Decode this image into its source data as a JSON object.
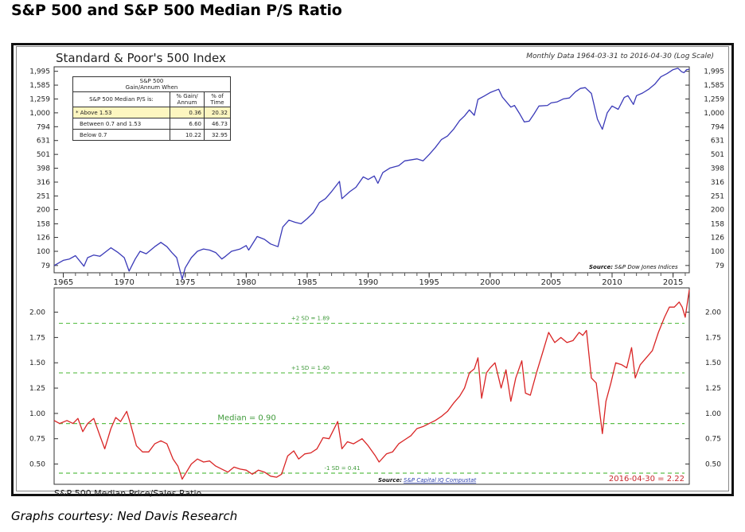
{
  "page": {
    "title": "S&P 500 and S&P 500 Median P/S Ratio",
    "credit": "Graphs courtesy: Ned Davis Research"
  },
  "stats_table": {
    "title_line1": "S&P 500",
    "title_line2": "Gain/Annum When",
    "col_headers": [
      "S&P 500 Median P/S is:",
      "% Gain/ Annum",
      "% of Time"
    ],
    "rows": [
      {
        "label": "* Above 1.53",
        "gain": "0.36",
        "time": "20.32",
        "highlight": true
      },
      {
        "label": "Between 0.7 and 1.53",
        "gain": "6.60",
        "time": "46.73",
        "highlight": false
      },
      {
        "label": "Below 0.7",
        "gain": "10.22",
        "time": "32.95",
        "highlight": false
      }
    ]
  },
  "colors": {
    "spx_line": "#3a3ab8",
    "ps_line": "#d92525",
    "sd_lines": "#5cbf4a",
    "sd_text": "#3f9a3a",
    "latest_text": "#c8282e",
    "source_link": "#2b3fb0"
  },
  "chart_data": [
    {
      "type": "line",
      "title": "Standard & Poor's 500 Index",
      "subtitle": "Monthly Data 1964-03-31 to 2016-04-30 (Log Scale)",
      "source_label": "Source:",
      "source_text": "S&P Dow Jones Indices",
      "xlabel": "",
      "ylabel": "",
      "yscale": "log",
      "ylim": [
        70,
        2150
      ],
      "xlim": [
        1964.25,
        2016.33
      ],
      "y_ticks": [
        1995,
        1585,
        1259,
        1000,
        794,
        631,
        501,
        398,
        316,
        251,
        200,
        158,
        126,
        100,
        79
      ],
      "y_tick_labels": [
        "1,995",
        "1,585",
        "1,259",
        "1,000",
        "794",
        "631",
        "501",
        "398",
        "316",
        "251",
        "200",
        "158",
        "126",
        "100",
        "79"
      ],
      "x_ticks": [
        1965,
        1970,
        1975,
        1980,
        1985,
        1990,
        1995,
        2000,
        2005,
        2010,
        2015
      ],
      "x_tick_labels": [
        "1965",
        "1970",
        "1975",
        "1980",
        "1985",
        "1990",
        "1995",
        "2000",
        "2005",
        "2010",
        "2015"
      ],
      "grid": false,
      "series": [
        {
          "name": "S&P 500",
          "x": [
            1964.25,
            1965.0,
            1965.5,
            1966.0,
            1966.7,
            1967.0,
            1967.5,
            1968.0,
            1968.9,
            1969.5,
            1970.0,
            1970.4,
            1970.9,
            1971.3,
            1971.8,
            1972.5,
            1973.0,
            1973.5,
            1973.9,
            1974.3,
            1974.75,
            1975.0,
            1975.5,
            1976.0,
            1976.5,
            1977.0,
            1977.5,
            1978.0,
            1978.3,
            1978.8,
            1979.5,
            1980.0,
            1980.2,
            1980.9,
            1981.5,
            1982.0,
            1982.6,
            1983.0,
            1983.5,
            1984.0,
            1984.5,
            1985.0,
            1985.5,
            1986.0,
            1986.5,
            1987.0,
            1987.65,
            1987.85,
            1988.5,
            1989.0,
            1989.6,
            1990.0,
            1990.5,
            1990.8,
            1991.2,
            1991.8,
            1992.5,
            1993.0,
            1994.0,
            1994.5,
            1995.0,
            1995.5,
            1996.0,
            1996.5,
            1997.0,
            1997.5,
            1997.9,
            1998.3,
            1998.7,
            1999.0,
            1999.5,
            2000.0,
            2000.7,
            2001.0,
            2001.7,
            2002.0,
            2002.4,
            2002.8,
            2003.2,
            2003.6,
            2004.0,
            2004.7,
            2005.0,
            2005.5,
            2006.0,
            2006.5,
            2007.0,
            2007.4,
            2007.8,
            2008.3,
            2008.8,
            2009.2,
            2009.6,
            2010.0,
            2010.5,
            2011.0,
            2011.3,
            2011.75,
            2012.0,
            2012.5,
            2013.0,
            2013.5,
            2014.0,
            2014.5,
            2015.0,
            2015.4,
            2015.7,
            2015.9,
            2016.1,
            2016.33
          ],
          "values": [
            79,
            86,
            88,
            93,
            78,
            90,
            94,
            92,
            106,
            98,
            90,
            72,
            88,
            100,
            96,
            108,
            116,
            108,
            98,
            90,
            63,
            76,
            90,
            100,
            104,
            102,
            98,
            88,
            92,
            100,
            104,
            110,
            102,
            128,
            122,
            113,
            108,
            150,
            168,
            162,
            158,
            172,
            190,
            225,
            240,
            270,
            320,
            240,
            270,
            290,
            345,
            330,
            350,
            310,
            370,
            400,
            415,
            450,
            465,
            450,
            500,
            560,
            640,
            680,
            760,
            880,
            950,
            1050,
            960,
            1250,
            1320,
            1400,
            1480,
            1300,
            1100,
            1130,
            990,
            860,
            870,
            980,
            1120,
            1130,
            1180,
            1200,
            1260,
            1280,
            1420,
            1500,
            1520,
            1380,
            900,
            760,
            1000,
            1120,
            1060,
            1290,
            1330,
            1150,
            1330,
            1390,
            1480,
            1610,
            1820,
            1920,
            2050,
            2100,
            1980,
            1950,
            2050,
            2065
          ]
        }
      ]
    },
    {
      "type": "line",
      "title": "S&P 500 Median Price/Sales Ratio",
      "source_label": "Source:",
      "source_text": "S&P Capital IQ Compustat",
      "latest_label": "2016-04-30 = 2.22",
      "xlabel": "",
      "ylabel": "",
      "yscale": "linear",
      "ylim": [
        0.3,
        2.24
      ],
      "xlim": [
        1964.25,
        2016.33
      ],
      "y_ticks": [
        2.0,
        1.75,
        1.5,
        1.25,
        1.0,
        0.75,
        0.5
      ],
      "y_tick_labels": [
        "2.00",
        "1.75",
        "1.50",
        "1.25",
        "1.00",
        "0.75",
        "0.50"
      ],
      "grid": false,
      "reference_lines": [
        {
          "label": "+2 SD = 1.89",
          "value": 1.89
        },
        {
          "label": "+1 SD = 1.40",
          "value": 1.4
        },
        {
          "label": "Median = 0.90",
          "value": 0.9
        },
        {
          "label": "-1 SD = 0.41",
          "value": 0.41
        }
      ],
      "series": [
        {
          "name": "S&P 500 Median P/S",
          "x": [
            1964.25,
            1964.7,
            1965.3,
            1965.8,
            1966.2,
            1966.6,
            1967.0,
            1967.5,
            1968.0,
            1968.4,
            1968.9,
            1969.3,
            1969.7,
            1970.2,
            1970.5,
            1971.0,
            1971.5,
            1972.0,
            1972.5,
            1973.0,
            1973.5,
            1974.0,
            1974.4,
            1974.75,
            1975.1,
            1975.5,
            1976.0,
            1976.5,
            1977.0,
            1977.5,
            1978.0,
            1978.5,
            1979.0,
            1979.5,
            1980.0,
            1980.5,
            1981.0,
            1981.5,
            1982.0,
            1982.5,
            1982.9,
            1983.4,
            1983.9,
            1984.3,
            1984.8,
            1985.3,
            1985.8,
            1986.3,
            1986.8,
            1987.5,
            1987.85,
            1988.3,
            1988.8,
            1989.5,
            1990.0,
            1990.6,
            1990.9,
            1991.5,
            1992.0,
            1992.5,
            1993.0,
            1993.5,
            1994.0,
            1994.5,
            1995.0,
            1995.5,
            1996.0,
            1996.5,
            1997.0,
            1997.5,
            1997.9,
            1998.3,
            1998.7,
            1999.0,
            1999.3,
            1999.7,
            2000.0,
            2000.4,
            2000.9,
            2001.3,
            2001.7,
            2002.1,
            2002.6,
            2002.9,
            2003.3,
            2003.8,
            2004.3,
            2004.8,
            2005.3,
            2005.8,
            2006.3,
            2006.8,
            2007.3,
            2007.6,
            2007.9,
            2008.3,
            2008.7,
            2009.0,
            2009.2,
            2009.5,
            2009.9,
            2010.3,
            2010.8,
            2011.2,
            2011.6,
            2011.9,
            2012.3,
            2012.8,
            2013.3,
            2013.8,
            2014.3,
            2014.7,
            2015.1,
            2015.5,
            2015.75,
            2016.0,
            2016.33
          ],
          "values": [
            0.93,
            0.9,
            0.93,
            0.9,
            0.95,
            0.82,
            0.9,
            0.95,
            0.78,
            0.65,
            0.85,
            0.96,
            0.92,
            1.02,
            0.9,
            0.68,
            0.62,
            0.62,
            0.7,
            0.73,
            0.7,
            0.55,
            0.48,
            0.35,
            0.42,
            0.5,
            0.55,
            0.52,
            0.53,
            0.48,
            0.45,
            0.42,
            0.47,
            0.45,
            0.44,
            0.4,
            0.44,
            0.42,
            0.38,
            0.37,
            0.4,
            0.58,
            0.63,
            0.55,
            0.6,
            0.61,
            0.65,
            0.76,
            0.75,
            0.92,
            0.65,
            0.72,
            0.7,
            0.75,
            0.68,
            0.58,
            0.52,
            0.6,
            0.62,
            0.7,
            0.74,
            0.78,
            0.85,
            0.87,
            0.9,
            0.93,
            0.97,
            1.02,
            1.1,
            1.17,
            1.25,
            1.4,
            1.44,
            1.55,
            1.15,
            1.4,
            1.45,
            1.5,
            1.25,
            1.43,
            1.12,
            1.35,
            1.52,
            1.2,
            1.18,
            1.4,
            1.6,
            1.8,
            1.7,
            1.75,
            1.7,
            1.72,
            1.8,
            1.77,
            1.82,
            1.35,
            1.3,
            1.0,
            0.8,
            1.12,
            1.3,
            1.5,
            1.48,
            1.45,
            1.65,
            1.35,
            1.48,
            1.55,
            1.62,
            1.8,
            1.95,
            2.05,
            2.05,
            2.1,
            2.05,
            1.95,
            2.22
          ]
        }
      ]
    }
  ]
}
